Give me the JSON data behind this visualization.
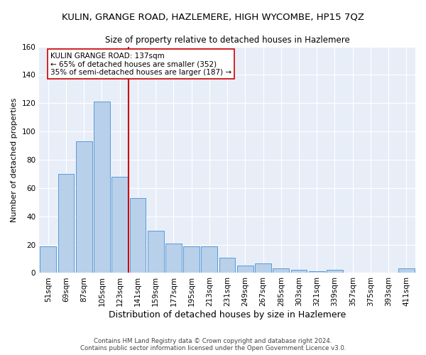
{
  "title": "KULIN, GRANGE ROAD, HAZLEMERE, HIGH WYCOMBE, HP15 7QZ",
  "subtitle": "Size of property relative to detached houses in Hazlemere",
  "xlabel": "Distribution of detached houses by size in Hazlemere",
  "ylabel": "Number of detached properties",
  "footer_line1": "Contains HM Land Registry data © Crown copyright and database right 2024.",
  "footer_line2": "Contains public sector information licensed under the Open Government Licence v3.0.",
  "bar_labels": [
    "51sqm",
    "69sqm",
    "87sqm",
    "105sqm",
    "123sqm",
    "141sqm",
    "159sqm",
    "177sqm",
    "195sqm",
    "213sqm",
    "231sqm",
    "249sqm",
    "267sqm",
    "285sqm",
    "303sqm",
    "321sqm",
    "339sqm",
    "357sqm",
    "375sqm",
    "393sqm",
    "411sqm"
  ],
  "bar_values": [
    19,
    70,
    93,
    121,
    68,
    53,
    30,
    21,
    19,
    19,
    11,
    5,
    7,
    3,
    2,
    1,
    2,
    0,
    0,
    0,
    3
  ],
  "bar_color": "#b8d0ea",
  "bar_edge_color": "#5b9bd5",
  "vline_color": "#cc0000",
  "annotation_text": "KULIN GRANGE ROAD: 137sqm\n← 65% of detached houses are smaller (352)\n35% of semi-detached houses are larger (187) →",
  "annotation_box_color": "#ffffff",
  "annotation_box_edge": "#cc0000",
  "ylim": [
    0,
    160
  ],
  "yticks": [
    0,
    20,
    40,
    60,
    80,
    100,
    120,
    140,
    160
  ],
  "bg_color": "#e8eef8",
  "grid_color": "#ffffff",
  "title_fontsize": 9.5,
  "subtitle_fontsize": 8.5,
  "xlabel_fontsize": 9,
  "ylabel_fontsize": 8,
  "tick_fontsize": 7.5,
  "annotation_fontsize": 7.5
}
